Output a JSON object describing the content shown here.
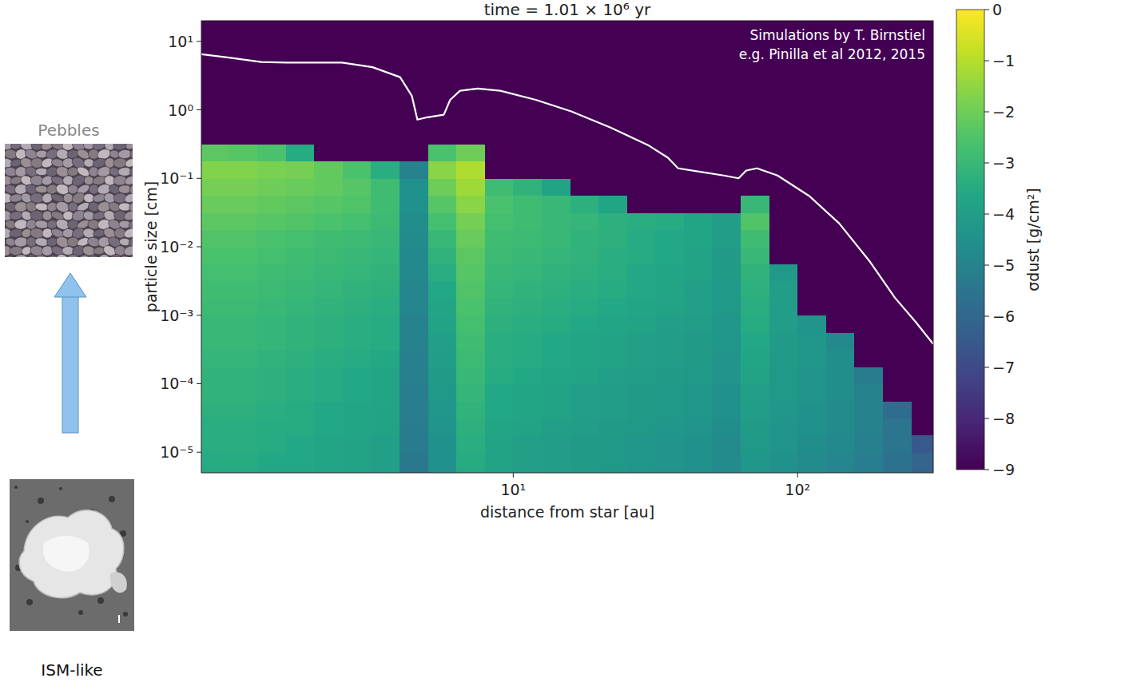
{
  "chart_data": {
    "type": "heatmap",
    "title": "time = 1.01 × 10⁶ yr",
    "x_label": "distance from star [au]",
    "y_label": "particle size [cm]",
    "log": true,
    "xlim": [
      0.8,
      300
    ],
    "ylim": [
      5e-06,
      20
    ],
    "xticks": [
      {
        "value": 10,
        "label": "10¹"
      },
      {
        "value": 100,
        "label": "10²"
      }
    ],
    "yticks": [
      {
        "value": 1e-05,
        "label": "10⁻⁵"
      },
      {
        "value": 0.0001,
        "label": "10⁻⁴"
      },
      {
        "value": 0.001,
        "label": "10⁻³"
      },
      {
        "value": 0.01,
        "label": "10⁻²"
      },
      {
        "value": 0.1,
        "label": "10⁻¹"
      },
      {
        "value": 1,
        "label": "10⁰"
      },
      {
        "value": 10,
        "label": "10¹"
      }
    ],
    "annotations": [
      "Simulations by T. Birnstiel",
      "e.g. Pinilla et al 2012, 2015"
    ],
    "x_edges": [
      0.794,
      1,
      1.259,
      1.585,
      1.995,
      2.512,
      3.162,
      3.981,
      5.012,
      6.31,
      7.943,
      10,
      12.59,
      15.85,
      19.95,
      25.12,
      31.62,
      39.81,
      50.12,
      63.1,
      79.43,
      100,
      125.9,
      158.5,
      199.5,
      251.2,
      316.2
    ],
    "y_edges": [
      3e-06,
      5.62e-06,
      1e-05,
      1.78e-05,
      3.16e-05,
      5.62e-05,
      0.0001,
      0.000178,
      0.000316,
      0.000562,
      0.001,
      0.00178,
      0.00316,
      0.00562,
      0.01,
      0.0178,
      0.0316,
      0.0562,
      0.1,
      0.178,
      0.316,
      0.562,
      1,
      25
    ],
    "cells": [
      [
        -3.6,
        -3.6,
        -3.7,
        -3.7,
        -3.8,
        -3.9,
        -4.0,
        -5.5,
        -4.6,
        -3.6,
        -3.9,
        -4.0,
        -4.1,
        -4.2,
        -4.3,
        -4.4,
        -4.5,
        -4.6,
        -4.8,
        -4.4,
        -4.6,
        -4.8,
        -5.0,
        -5.3,
        -5.7,
        -6.2
      ],
      [
        -3.5,
        -3.5,
        -3.6,
        -3.6,
        -3.7,
        -3.8,
        -3.9,
        -5.4,
        -4.5,
        -3.5,
        -3.8,
        -3.9,
        -4.0,
        -4.1,
        -4.2,
        -4.3,
        -4.4,
        -4.5,
        -4.7,
        -4.3,
        -4.5,
        -4.7,
        -4.9,
        -5.2,
        -5.6,
        -6.1
      ],
      [
        -3.4,
        -3.4,
        -3.5,
        -3.6,
        -3.7,
        -3.8,
        -3.9,
        -5.3,
        -4.5,
        -3.4,
        -3.8,
        -3.9,
        -4.0,
        -4.1,
        -4.2,
        -4.3,
        -4.4,
        -4.5,
        -4.7,
        -4.2,
        -4.4,
        -4.6,
        -4.8,
        -5.1,
        -5.5,
        -6.5
      ],
      [
        -3.4,
        -3.4,
        -3.5,
        -3.5,
        -3.6,
        -3.7,
        -3.8,
        -5.3,
        -4.4,
        -3.3,
        -3.7,
        -3.8,
        -3.9,
        -4.0,
        -4.1,
        -4.2,
        -4.3,
        -4.4,
        -4.6,
        -4.1,
        -4.4,
        -4.5,
        -4.7,
        -5.0,
        -5.5,
        -9
      ],
      [
        -3.3,
        -3.3,
        -3.4,
        -3.5,
        -3.6,
        -3.7,
        -3.8,
        -5.2,
        -4.3,
        -3.2,
        -3.6,
        -3.7,
        -3.8,
        -3.9,
        -4.0,
        -4.1,
        -4.2,
        -4.3,
        -4.5,
        -4.0,
        -4.3,
        -4.5,
        -4.7,
        -5.0,
        -5.8,
        -9
      ],
      [
        -3.2,
        -3.2,
        -3.3,
        -3.4,
        -3.5,
        -3.6,
        -3.7,
        -5.2,
        -4.2,
        -3.1,
        -3.6,
        -3.7,
        -3.8,
        -3.9,
        -4.0,
        -4.1,
        -4.2,
        -4.3,
        -4.5,
        -3.9,
        -4.2,
        -4.4,
        -4.6,
        -5.0,
        -9,
        -9
      ],
      [
        -3.2,
        -3.2,
        -3.3,
        -3.4,
        -3.5,
        -3.6,
        -3.7,
        -5.1,
        -4.1,
        -3.0,
        -3.5,
        -3.6,
        -3.7,
        -3.8,
        -3.9,
        -4.0,
        -4.1,
        -4.2,
        -4.4,
        -3.8,
        -4.2,
        -4.4,
        -4.6,
        -5.3,
        -9,
        -9
      ],
      [
        -3.1,
        -3.1,
        -3.2,
        -3.3,
        -3.4,
        -3.5,
        -3.6,
        -5.1,
        -4.0,
        -2.9,
        -3.4,
        -3.5,
        -3.6,
        -3.7,
        -3.8,
        -3.9,
        -4.0,
        -4.1,
        -4.4,
        -3.7,
        -4.1,
        -4.3,
        -4.6,
        -9,
        -9,
        -9
      ],
      [
        -3.0,
        -3.0,
        -3.1,
        -3.2,
        -3.3,
        -3.4,
        -3.5,
        -5.0,
        -3.9,
        -2.8,
        -3.4,
        -3.5,
        -3.6,
        -3.7,
        -3.8,
        -3.9,
        -4.0,
        -4.1,
        -4.3,
        -3.6,
        -4.1,
        -4.3,
        -4.8,
        -9,
        -9,
        -9
      ],
      [
        -3.0,
        -3.0,
        -3.1,
        -3.2,
        -3.3,
        -3.4,
        -3.5,
        -5.0,
        -3.8,
        -2.7,
        -3.3,
        -3.4,
        -3.5,
        -3.6,
        -3.7,
        -3.8,
        -3.9,
        -4.0,
        -4.3,
        -3.5,
        -4.0,
        -4.4,
        -9,
        -9,
        -9,
        -9
      ],
      [
        -2.9,
        -2.9,
        -3.0,
        -3.1,
        -3.2,
        -3.3,
        -3.4,
        -4.9,
        -3.7,
        -2.6,
        -3.2,
        -3.3,
        -3.4,
        -3.5,
        -3.6,
        -3.7,
        -3.8,
        -3.9,
        -4.2,
        -3.4,
        -4.0,
        -9,
        -9,
        -9,
        -9,
        -9
      ],
      [
        -2.8,
        -2.8,
        -2.9,
        -3.0,
        -3.1,
        -3.2,
        -3.3,
        -4.9,
        -3.6,
        -2.5,
        -3.1,
        -3.2,
        -3.3,
        -3.4,
        -3.5,
        -3.6,
        -3.7,
        -3.9,
        -4.2,
        -3.3,
        -4.0,
        -9,
        -9,
        -9,
        -9,
        -9
      ],
      [
        -2.7,
        -2.7,
        -2.8,
        -2.9,
        -3.0,
        -3.1,
        -3.2,
        -4.8,
        -3.4,
        -2.4,
        -3.0,
        -3.1,
        -3.2,
        -3.3,
        -3.4,
        -3.6,
        -3.7,
        -3.8,
        -4.1,
        -3.2,
        -4.2,
        -9,
        -9,
        -9,
        -9,
        -9
      ],
      [
        -2.6,
        -2.6,
        -2.7,
        -2.8,
        -2.9,
        -3.0,
        -3.1,
        -4.8,
        -3.2,
        -2.3,
        -2.9,
        -3.0,
        -3.1,
        -3.2,
        -3.4,
        -3.5,
        -3.6,
        -3.8,
        -4.1,
        -3.0,
        -9,
        -9,
        -9,
        -9,
        -9,
        -9
      ],
      [
        -2.5,
        -2.5,
        -2.6,
        -2.7,
        -2.8,
        -2.9,
        -3.0,
        -4.7,
        -3.0,
        -2.1,
        -2.8,
        -2.9,
        -3.0,
        -3.2,
        -3.3,
        -3.5,
        -3.6,
        -3.7,
        -4.0,
        -2.8,
        -9,
        -9,
        -9,
        -9,
        -9,
        -9
      ],
      [
        -2.3,
        -2.3,
        -2.4,
        -2.5,
        -2.6,
        -2.7,
        -2.9,
        -4.6,
        -2.7,
        -1.9,
        -2.7,
        -2.8,
        -3.0,
        -3.1,
        -3.3,
        -3.4,
        -3.5,
        -3.7,
        -4.0,
        -2.5,
        -9,
        -9,
        -9,
        -9,
        -9,
        -9
      ],
      [
        -2.1,
        -2.1,
        -2.2,
        -2.3,
        -2.4,
        -2.5,
        -2.8,
        -4.5,
        -2.4,
        -1.6,
        -2.6,
        -2.8,
        -3.0,
        -3.3,
        -3.7,
        -9,
        -9,
        -9,
        -9,
        -3.0,
        -9,
        -9,
        -9,
        -9,
        -9,
        -9
      ],
      [
        -1.9,
        -1.9,
        -2.0,
        -2.1,
        -2.2,
        -2.4,
        -2.8,
        -4.5,
        -2.0,
        -1.3,
        -2.8,
        -3.2,
        -3.8,
        -9,
        -9,
        -9,
        -9,
        -9,
        -9,
        -9,
        -9,
        -9,
        -9,
        -9,
        -9,
        -9
      ],
      [
        -1.7,
        -1.7,
        -1.8,
        -1.9,
        -2.2,
        -2.6,
        -3.4,
        -5.0,
        -1.6,
        -1.1,
        -9,
        -9,
        -9,
        -9,
        -9,
        -9,
        -9,
        -9,
        -9,
        -9,
        -9,
        -9,
        -9,
        -9,
        -9,
        -9
      ],
      [
        -2.3,
        -2.4,
        -2.6,
        -3.5,
        -9,
        -9,
        -9,
        -9,
        -2.6,
        -2.0,
        -9,
        -9,
        -9,
        -9,
        -9,
        -9,
        -9,
        -9,
        -9,
        -9,
        -9,
        -9,
        -9,
        -9,
        -9,
        -9
      ],
      [
        -9,
        -9,
        -9,
        -9,
        -9,
        -9,
        -9,
        -9,
        -9,
        -9,
        -9,
        -9,
        -9,
        -9,
        -9,
        -9,
        -9,
        -9,
        -9,
        -9,
        -9,
        -9,
        -9,
        -9,
        -9,
        -9
      ],
      [
        -9,
        -9,
        -9,
        -9,
        -9,
        -9,
        -9,
        -9,
        -9,
        -9,
        -9,
        -9,
        -9,
        -9,
        -9,
        -9,
        -9,
        -9,
        -9,
        -9,
        -9,
        -9,
        -9,
        -9,
        -9,
        -9
      ],
      [
        -9,
        -9,
        -9,
        -9,
        -9,
        -9,
        -9,
        -9,
        -9,
        -9,
        -9,
        -9,
        -9,
        -9,
        -9,
        -9,
        -9,
        -9,
        -9,
        -9,
        -9,
        -9,
        -9,
        -9,
        -9,
        -9
      ]
    ],
    "colorbar": {
      "label": "σdust [g/cm²]",
      "range": [
        -9,
        0
      ],
      "ticks": [
        0,
        {
          "value": -1,
          "label": "−1"
        },
        {
          "value": -2,
          "label": "−2"
        },
        {
          "value": -3,
          "label": "−3"
        },
        {
          "value": -4,
          "label": "−4"
        },
        {
          "value": -5,
          "label": "−5"
        },
        {
          "value": -6,
          "label": "−6"
        },
        {
          "value": -7,
          "label": "−7"
        },
        {
          "value": -8,
          "label": "−8"
        },
        {
          "value": -9,
          "label": "−9"
        }
      ]
    },
    "series": [
      {
        "type": "line",
        "color": "#ffffff",
        "x": [
          0.8,
          1.0,
          1.3,
          1.6,
          2.5,
          3.2,
          4.0,
          4.4,
          4.6,
          5.0,
          5.7,
          6.0,
          6.5,
          7.5,
          9.0,
          12,
          16,
          22,
          30,
          35,
          38,
          45,
          55,
          62,
          66,
          72,
          85,
          110,
          140,
          180,
          220,
          260,
          300
        ],
        "values": [
          6.5,
          5.8,
          5.0,
          4.9,
          4.9,
          4.2,
          3.0,
          1.6,
          0.72,
          0.78,
          0.85,
          1.4,
          1.9,
          2.05,
          1.9,
          1.4,
          0.95,
          0.55,
          0.3,
          0.2,
          0.14,
          0.125,
          0.11,
          0.1,
          0.13,
          0.14,
          0.11,
          0.055,
          0.022,
          0.006,
          0.0018,
          0.0008,
          0.00038
        ]
      }
    ]
  },
  "illustration": {
    "top_label": "Pebbles",
    "bottom_label": "ISM-like"
  }
}
